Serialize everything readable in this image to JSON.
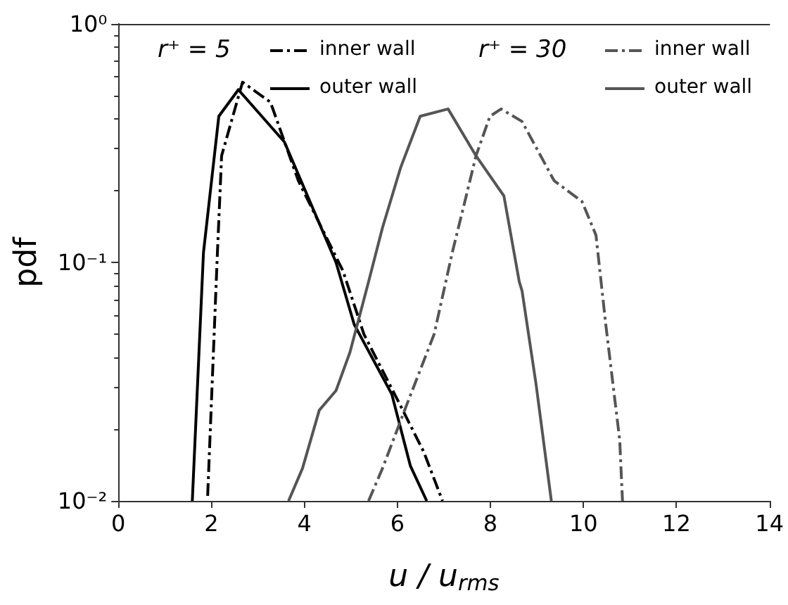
{
  "chart_data": {
    "type": "line",
    "xlabel": "u / u$_{rms}$",
    "ylabel": "pdf",
    "log": "y",
    "grid": false,
    "legend": "top",
    "marker": "none",
    "xlim": [
      0,
      14
    ],
    "xticks": [
      0,
      2,
      4,
      6,
      8,
      10,
      12,
      14
    ],
    "ylim": [
      0.01,
      1
    ],
    "yticks": [
      {
        "value": 0.01,
        "label": "10⁻²"
      },
      {
        "value": 0.1,
        "label": "10⁻¹"
      },
      {
        "value": 1,
        "label": "10⁰"
      }
    ],
    "annotations": [
      "r⁺ = 5",
      "r⁺ = 30"
    ],
    "series": [
      {
        "name": "inner wall",
        "color": "#000000",
        "line_style": "dashdot",
        "x": [
          1.92,
          2.13,
          2.22,
          2.67,
          3.27,
          3.87,
          4.83,
          5.28,
          6.07,
          6.57,
          6.97
        ],
        "values": [
          0.0105,
          0.11,
          0.28,
          0.57,
          0.47,
          0.22,
          0.092,
          0.05,
          0.025,
          0.016,
          0.01
        ]
      },
      {
        "name": "outer wall",
        "color": "#000000",
        "line_style": "solid",
        "x": [
          1.59,
          1.83,
          2.16,
          2.58,
          3.57,
          4.68,
          5.07,
          5.88,
          6.28,
          6.63
        ],
        "values": [
          0.01,
          0.11,
          0.41,
          0.53,
          0.32,
          0.1,
          0.055,
          0.028,
          0.014,
          0.01
        ]
      },
      {
        "name": "inner wall",
        "color": "#555555",
        "line_style": "dashdot",
        "x": [
          5.38,
          5.68,
          6.19,
          6.79,
          7.18,
          7.48,
          7.69,
          7.99,
          8.23,
          8.68,
          9.37,
          9.97,
          10.27,
          10.48,
          10.78,
          10.84
        ],
        "values": [
          0.01,
          0.0137,
          0.025,
          0.05,
          0.11,
          0.19,
          0.28,
          0.41,
          0.44,
          0.39,
          0.22,
          0.18,
          0.13,
          0.055,
          0.018,
          0.01
        ]
      },
      {
        "name": "outer wall",
        "color": "#555555",
        "line_style": "solid",
        "x": [
          3.66,
          3.96,
          4.32,
          4.68,
          4.98,
          5.38,
          5.68,
          6.07,
          6.49,
          7.09,
          7.69,
          8.29,
          8.62,
          8.68,
          8.98,
          9.31
        ],
        "values": [
          0.01,
          0.0137,
          0.024,
          0.029,
          0.042,
          0.083,
          0.14,
          0.25,
          0.41,
          0.44,
          0.28,
          0.19,
          0.083,
          0.076,
          0.031,
          0.01
        ]
      }
    ]
  }
}
